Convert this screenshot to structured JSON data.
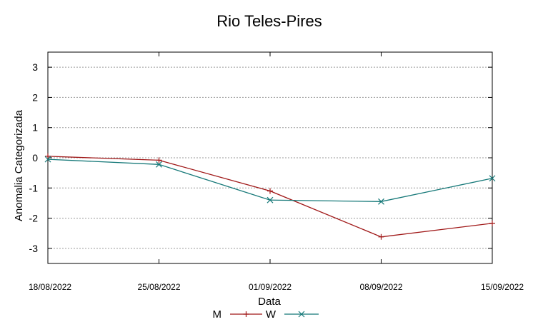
{
  "chart_data": {
    "type": "line",
    "title": "Rio Teles-Pires",
    "xlabel": "Data",
    "ylabel": "Anomalia Categorizada",
    "categories": [
      "18/08/2022",
      "25/08/2022",
      "01/09/2022",
      "08/09/2022",
      "15/09/2022"
    ],
    "yticks": [
      "3",
      "2",
      "1",
      "0",
      "-1",
      "-2",
      "-3"
    ],
    "ylim": [
      -3.5,
      3.5
    ],
    "grid": "horizontal-dashed",
    "legend_position": "bottom-center",
    "series": [
      {
        "name": "M",
        "marker": "plus",
        "color": "#a01818",
        "values": [
          0.05,
          -0.08,
          -1.1,
          -2.62,
          -2.17
        ]
      },
      {
        "name": "W",
        "marker": "cross",
        "color": "#157878",
        "values": [
          -0.05,
          -0.22,
          -1.4,
          -1.45,
          -0.68
        ]
      }
    ]
  }
}
